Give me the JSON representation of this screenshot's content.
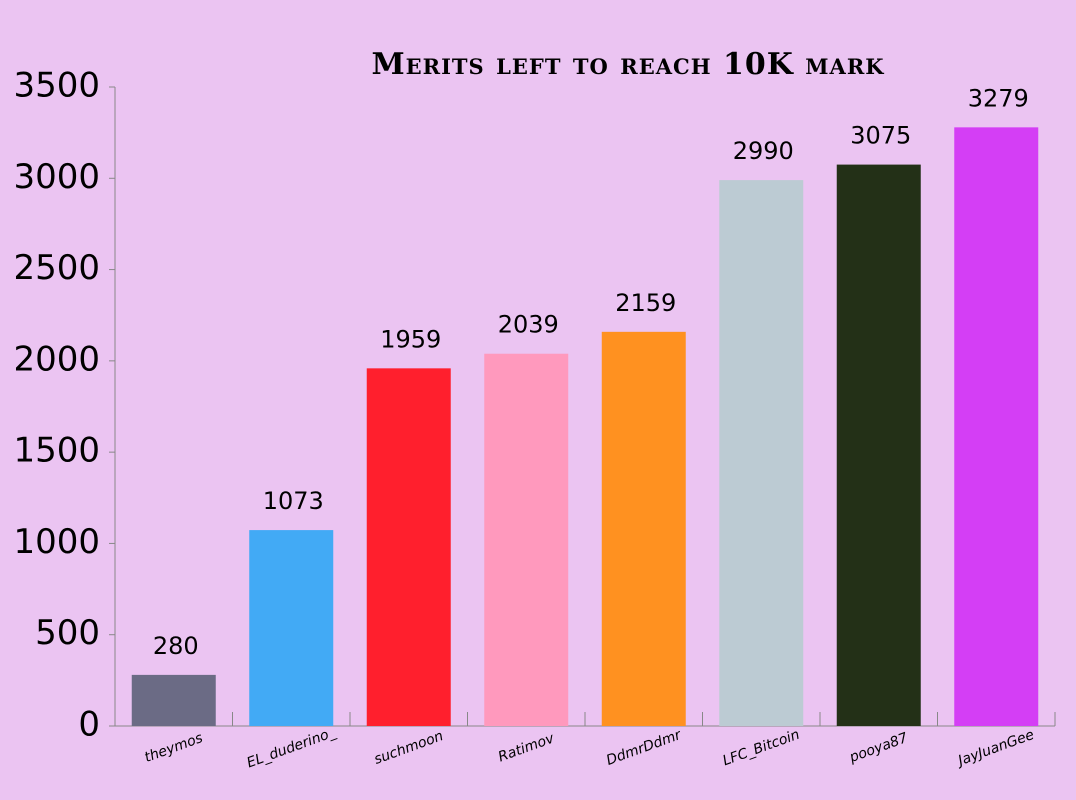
{
  "chart_data": {
    "type": "bar",
    "title": "Merits left to reach 10K mark",
    "categories": [
      "theymos",
      "EL_duderino_",
      "suchmoon",
      "Ratimov",
      "DdmrDdmr",
      "LFC_Bitcoin",
      "pooya87",
      "JayJuanGee"
    ],
    "values": [
      280,
      1073,
      1959,
      2039,
      2159,
      2990,
      3075,
      3279
    ],
    "colors": [
      "#6b6b85",
      "#42aaf5",
      "#ff1f2d",
      "#ff99bd",
      "#ff9120",
      "#bccbd3",
      "#233017",
      "#d43ef5"
    ],
    "ylim": [
      0,
      3500
    ],
    "yticks": [
      0,
      500,
      1000,
      1500,
      2000,
      2500,
      3000,
      3500
    ],
    "grid": false
  }
}
